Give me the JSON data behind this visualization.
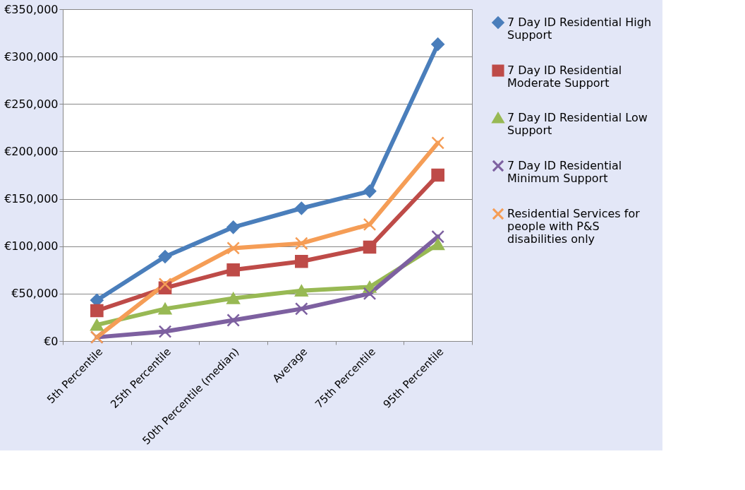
{
  "chart_data": {
    "type": "line",
    "categories": [
      "5th Percentile",
      "25th Percentile",
      "50th Percentile (median)",
      "Average",
      "75th Percentile",
      "95th Percentile"
    ],
    "ylim": [
      0,
      350000
    ],
    "yticks": [
      {
        "value": 0,
        "label": "€0"
      },
      {
        "value": 50000,
        "label": "€50,000"
      },
      {
        "value": 100000,
        "label": "€100,000"
      },
      {
        "value": 150000,
        "label": "€150,000"
      },
      {
        "value": 200000,
        "label": "€200,000"
      },
      {
        "value": 250000,
        "label": "€250,000"
      },
      {
        "value": 300000,
        "label": "€300,000"
      },
      {
        "value": 350000,
        "label": "€350,000"
      }
    ],
    "grid": "y",
    "legend": "right",
    "line_style": "solid",
    "series": [
      {
        "name": "7 Day ID Residential High Support",
        "color": "#4a7ebb",
        "marker": "diamond",
        "values": [
          43000,
          89000,
          120000,
          140000,
          158000,
          313000
        ]
      },
      {
        "name": "7 Day ID Residential Moderate Support",
        "color": "#be4b48",
        "marker": "square",
        "values": [
          32000,
          56000,
          75000,
          84000,
          99000,
          175000
        ]
      },
      {
        "name": "7 Day ID Residential Low Support",
        "color": "#98b954",
        "marker": "triangle",
        "values": [
          17000,
          34000,
          45000,
          53000,
          57000,
          102000
        ]
      },
      {
        "name": "7 Day ID Residential Minimum Support",
        "color": "#7d60a0",
        "marker": "cross",
        "values": [
          4000,
          10000,
          22000,
          34000,
          50000,
          110000
        ]
      },
      {
        "name": "Residential Services for people with P&S disabilities only",
        "color": "#f59d56",
        "marker": "cross",
        "values": [
          4000,
          60000,
          98000,
          103000,
          123000,
          209000
        ]
      }
    ]
  }
}
